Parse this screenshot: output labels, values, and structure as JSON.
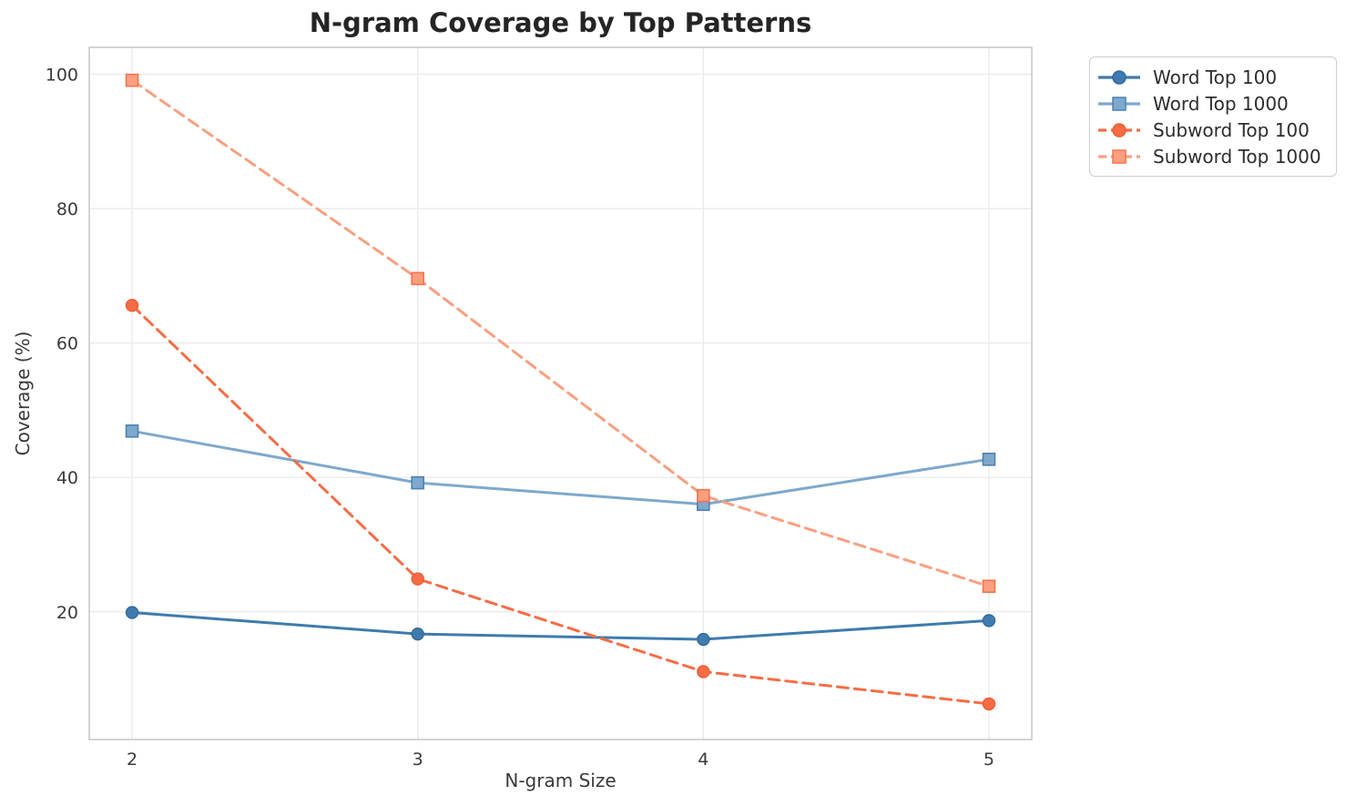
{
  "chart_data": {
    "type": "line",
    "title": "N-gram Coverage by Top Patterns",
    "xlabel": "N-gram Size",
    "ylabel": "Coverage (%)",
    "x": [
      2,
      3,
      4,
      5
    ],
    "xticks": [
      2,
      3,
      4,
      5
    ],
    "yticks": [
      20,
      40,
      60,
      80,
      100
    ],
    "xlim": [
      1.85,
      5.15
    ],
    "ylim": [
      1,
      104
    ],
    "grid": true,
    "legend_position": "outside-top-right",
    "series": [
      {
        "name": "Word Top 100",
        "values": [
          19.9,
          16.7,
          15.9,
          18.7
        ],
        "color": "#3e7bae",
        "edge_color": "#36699a",
        "line_style": "solid",
        "marker": "circle"
      },
      {
        "name": "Word Top 1000",
        "values": [
          46.9,
          39.2,
          36.0,
          42.7
        ],
        "color": "#7fa8cd",
        "edge_color": "#4d83b2",
        "line_style": "solid",
        "marker": "square"
      },
      {
        "name": "Subword Top 100",
        "values": [
          65.6,
          24.9,
          11.1,
          6.3
        ],
        "color": "#f76c45",
        "edge_color": "#ef5c32",
        "line_style": "dashed",
        "marker": "circle"
      },
      {
        "name": "Subword Top 1000",
        "values": [
          99.1,
          69.6,
          37.3,
          23.8
        ],
        "color": "#f99f80",
        "edge_color": "#f4744b",
        "line_style": "dashed",
        "marker": "square"
      }
    ],
    "style": {
      "grid_color": "#ececec",
      "border_color": "#c9c9c9",
      "tick_label_color": "#3a3a3a",
      "title_color": "#252525"
    }
  }
}
